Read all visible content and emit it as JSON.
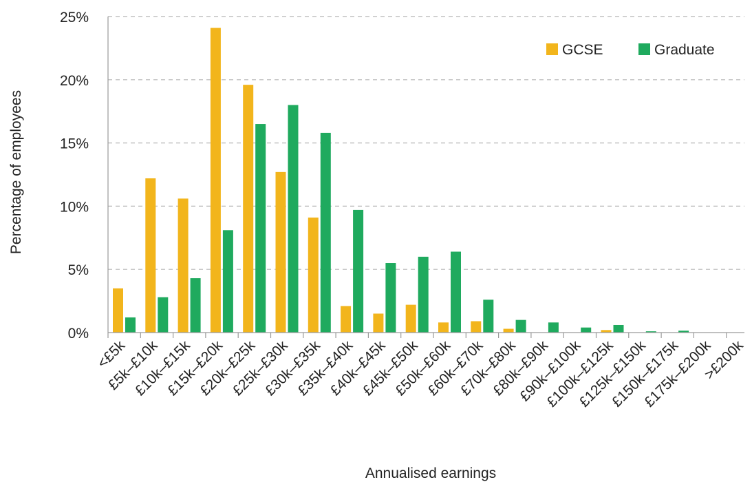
{
  "chart_data": {
    "type": "bar",
    "xlabel": "Annualised earnings",
    "ylabel": "Percentage of employees",
    "ylim": [
      0,
      25
    ],
    "yticks": [
      0,
      5,
      10,
      15,
      20,
      25
    ],
    "ytick_labels": [
      "0%",
      "5%",
      "10%",
      "15%",
      "20%",
      "25%"
    ],
    "grid": true,
    "legend_position": "top-right",
    "categories": [
      "<£5k",
      "£5k–£10k",
      "£10k–£15k",
      "£15k–£20k",
      "£20k–£25k",
      "£25k–£30k",
      "£30k–£35k",
      "£35k–£40k",
      "£40k–£45k",
      "£45k–£50k",
      "£50k–£60k",
      "£60k–£70k",
      "£70k–£80k",
      "£80k–£90k",
      "£90k–£100k",
      "£100k–£125k",
      "£125k–£150k",
      "£150k–£175k",
      "£175k–£200k",
      ">£200k"
    ],
    "series": [
      {
        "name": "GCSE",
        "color": "#f2b51c",
        "values": [
          3.5,
          12.2,
          10.6,
          24.1,
          19.6,
          12.7,
          9.1,
          2.1,
          1.5,
          2.2,
          0.8,
          0.9,
          0.3,
          0.0,
          0.0,
          0.2,
          0.0,
          0.0,
          0.0,
          0.0
        ]
      },
      {
        "name": "Graduate",
        "color": "#1faa5e",
        "values": [
          1.2,
          2.8,
          4.3,
          8.1,
          16.5,
          18.0,
          15.8,
          9.7,
          5.5,
          6.0,
          6.4,
          2.6,
          1.0,
          0.8,
          0.4,
          0.6,
          0.1,
          0.15,
          0.0,
          0.0
        ]
      }
    ]
  }
}
